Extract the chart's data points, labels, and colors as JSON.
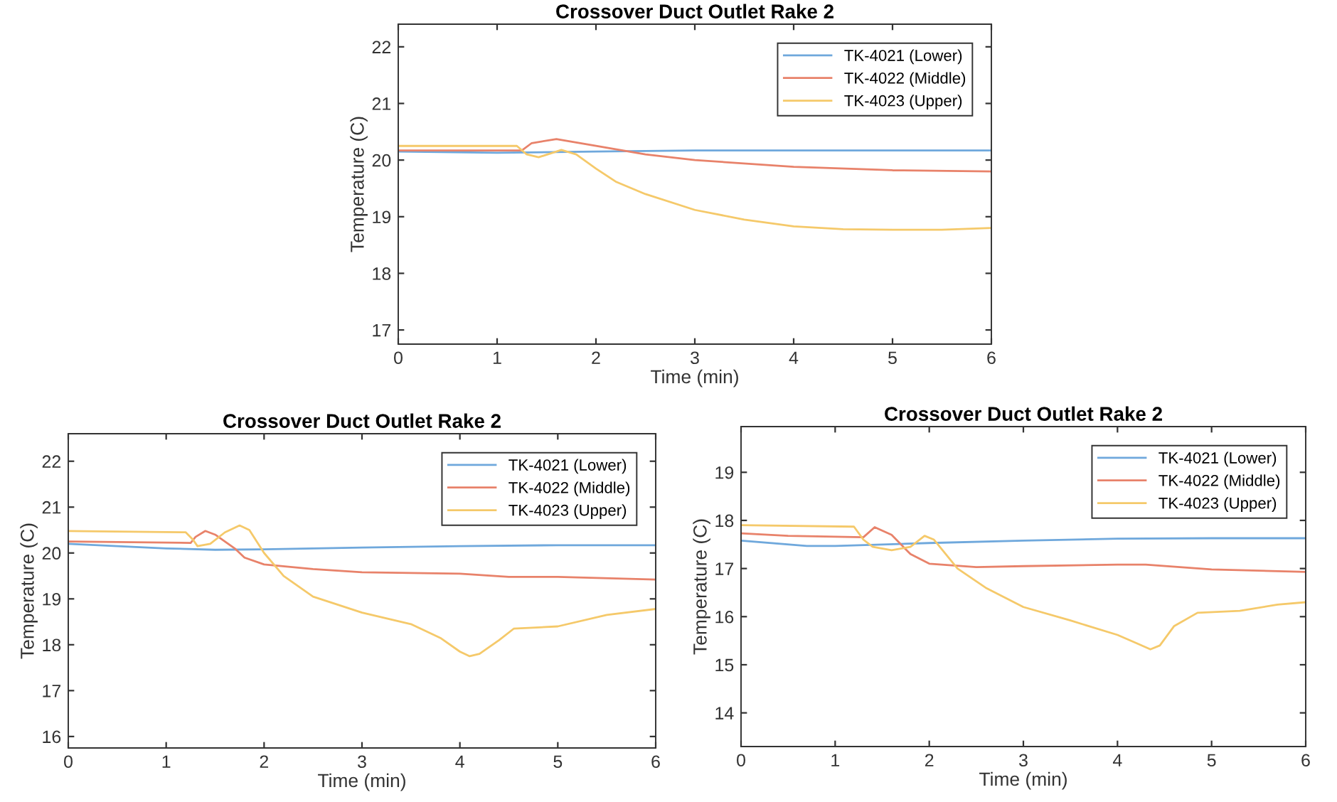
{
  "chart_data": [
    {
      "type": "line",
      "title": "Crossover Duct Outlet Rake 2",
      "xlabel": "Time (min)",
      "ylabel": "Temperature (C)",
      "xlim": [
        0,
        6
      ],
      "ylim": [
        16.75,
        22.4
      ],
      "xticks": [
        0,
        1,
        2,
        3,
        4,
        5,
        6
      ],
      "yticks": [
        17,
        18,
        19,
        20,
        21,
        22
      ],
      "legend": "top right",
      "grid": false,
      "series": [
        {
          "name": "TK-4021 (Lower)",
          "color": "#6fa8dc",
          "x": [
            0,
            1,
            2,
            3,
            4,
            5,
            6
          ],
          "values": [
            20.15,
            20.13,
            20.15,
            20.17,
            20.17,
            20.17,
            20.17
          ]
        },
        {
          "name": "TK-4022 (Middle)",
          "color": "#e8826a",
          "x": [
            0,
            1.25,
            1.35,
            1.6,
            2,
            2.5,
            3,
            4,
            5,
            6
          ],
          "values": [
            20.17,
            20.17,
            20.3,
            20.37,
            20.25,
            20.1,
            20.0,
            19.88,
            19.82,
            19.8
          ]
        },
        {
          "name": "TK-4023 (Upper)",
          "color": "#f5c96a",
          "x": [
            0,
            1.2,
            1.3,
            1.42,
            1.65,
            1.8,
            2,
            2.2,
            2.5,
            3,
            3.5,
            4,
            4.5,
            5,
            5.5,
            6
          ],
          "values": [
            20.25,
            20.25,
            20.1,
            20.05,
            20.18,
            20.1,
            19.85,
            19.62,
            19.4,
            19.12,
            18.95,
            18.83,
            18.78,
            18.77,
            18.77,
            18.8
          ]
        }
      ]
    },
    {
      "type": "line",
      "title": "Crossover Duct Outlet Rake 2",
      "xlabel": "Time (min)",
      "ylabel": "Temperature (C)",
      "xlim": [
        0,
        6
      ],
      "ylim": [
        15.75,
        22.6
      ],
      "xticks": [
        0,
        1,
        2,
        3,
        4,
        5,
        6
      ],
      "yticks": [
        16,
        17,
        18,
        19,
        20,
        21,
        22
      ],
      "legend": "top right",
      "grid": false,
      "series": [
        {
          "name": "TK-4021 (Lower)",
          "color": "#6fa8dc",
          "x": [
            0,
            1,
            1.5,
            2,
            3,
            4,
            5,
            6
          ],
          "values": [
            20.2,
            20.1,
            20.07,
            20.08,
            20.12,
            20.15,
            20.17,
            20.17
          ]
        },
        {
          "name": "TK-4022 (Middle)",
          "color": "#e8826a",
          "x": [
            0,
            1.25,
            1.3,
            1.4,
            1.5,
            1.7,
            1.8,
            2,
            2.5,
            3,
            4,
            4.5,
            5,
            6
          ],
          "values": [
            20.25,
            20.22,
            20.35,
            20.48,
            20.4,
            20.1,
            19.9,
            19.75,
            19.65,
            19.58,
            19.55,
            19.48,
            19.48,
            19.42
          ]
        },
        {
          "name": "TK-4023 (Upper)",
          "color": "#f5c96a",
          "x": [
            0,
            1.2,
            1.27,
            1.32,
            1.45,
            1.6,
            1.75,
            1.85,
            2,
            2.2,
            2.5,
            3,
            3.5,
            3.8,
            4.0,
            4.1,
            4.2,
            4.4,
            4.55,
            5,
            5.5,
            6
          ],
          "values": [
            20.48,
            20.45,
            20.3,
            20.15,
            20.2,
            20.45,
            20.6,
            20.5,
            20.0,
            19.5,
            19.05,
            18.7,
            18.45,
            18.15,
            17.85,
            17.75,
            17.8,
            18.1,
            18.35,
            18.4,
            18.65,
            18.78
          ]
        }
      ]
    },
    {
      "type": "line",
      "title": "Crossover Duct Outlet Rake 2",
      "xlabel": "Time (min)",
      "ylabel": "Temperature (C)",
      "xlim": [
        0,
        6
      ],
      "ylim": [
        13.3,
        19.95
      ],
      "xticks": [
        0,
        1,
        2,
        3,
        4,
        5,
        6
      ],
      "yticks": [
        14,
        15,
        16,
        17,
        18,
        19
      ],
      "legend": "top right",
      "grid": false,
      "series": [
        {
          "name": "TK-4021 (Lower)",
          "color": "#6fa8dc",
          "x": [
            0,
            0.7,
            1,
            1.5,
            2,
            3,
            4,
            5,
            6
          ],
          "values": [
            17.58,
            17.47,
            17.47,
            17.5,
            17.53,
            17.58,
            17.62,
            17.63,
            17.63
          ]
        },
        {
          "name": "TK-4022 (Middle)",
          "color": "#e8826a",
          "x": [
            0,
            0.5,
            1.3,
            1.42,
            1.6,
            1.8,
            2,
            2.5,
            3,
            4,
            4.3,
            5,
            6
          ],
          "values": [
            17.73,
            17.68,
            17.65,
            17.86,
            17.7,
            17.3,
            17.1,
            17.03,
            17.05,
            17.08,
            17.08,
            16.98,
            16.93
          ]
        },
        {
          "name": "TK-4023 (Upper)",
          "color": "#f5c96a",
          "x": [
            0,
            1.2,
            1.3,
            1.4,
            1.6,
            1.8,
            1.95,
            2.05,
            2.3,
            2.6,
            3,
            3.5,
            4,
            4.2,
            4.35,
            4.45,
            4.6,
            4.85,
            5.3,
            5.7,
            6
          ],
          "values": [
            17.9,
            17.87,
            17.6,
            17.45,
            17.38,
            17.45,
            17.68,
            17.6,
            17.0,
            16.6,
            16.2,
            15.92,
            15.62,
            15.45,
            15.32,
            15.4,
            15.8,
            16.08,
            16.12,
            16.25,
            16.3
          ]
        }
      ]
    }
  ]
}
